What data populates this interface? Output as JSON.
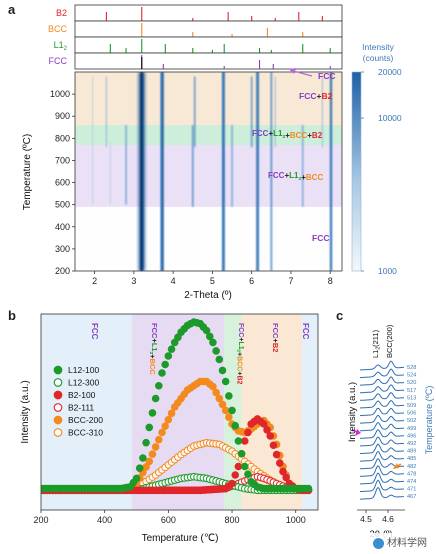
{
  "watermark": "材料学网",
  "panel_a": {
    "letter": "a",
    "xlabel": "2-Theta (º)",
    "ylabel": "Temperature (ºC)",
    "x_ticks": [
      "2",
      "3",
      "4",
      "5",
      "6",
      "7",
      "8"
    ],
    "y_ticks": [
      "200",
      "300",
      "400",
      "500",
      "600",
      "700",
      "800",
      "900",
      "1000"
    ],
    "colorbar": {
      "title_line1": "Intensity",
      "title_line2": "(counts)",
      "ticks": [
        "20000",
        "10000",
        "1000"
      ],
      "scale": "log",
      "range": [
        1000,
        20000
      ]
    },
    "ref_patterns": [
      {
        "label": "B2",
        "color": "#e0262a",
        "peaks": [
          2.3,
          3.2,
          4.5,
          5.4,
          6.0,
          6.6,
          7.2,
          7.8
        ]
      },
      {
        "label": "BCC",
        "color": "#f28a1e",
        "peaks": [
          3.2,
          4.5,
          5.5,
          6.4,
          7.3
        ]
      },
      {
        "label": "L1",
        "label_sub": "2",
        "color": "#1c9a2a",
        "peaks": [
          2.4,
          2.8,
          3.2,
          3.8,
          4.5,
          5.0,
          5.3,
          6.2,
          6.5,
          7.3,
          8.0
        ]
      },
      {
        "label": "FCC",
        "color": "#8a3cc4",
        "peaks": [
          3.2,
          3.75,
          5.3,
          6.2,
          6.55,
          8.0
        ]
      }
    ],
    "region_labels": [
      {
        "text": "FCC",
        "color": "#8a3cc4"
      },
      {
        "parts": [
          {
            "t": "FCC",
            "c": "#8a3cc4"
          },
          {
            "t": "+",
            "c": "#222"
          },
          {
            "t": "B2",
            "c": "#e0262a"
          }
        ]
      },
      {
        "parts": [
          {
            "t": "FCC",
            "c": "#8a3cc4"
          },
          {
            "t": "+",
            "c": "#222"
          },
          {
            "t": "L1",
            "c": "#1c9a2a",
            "sub": "2"
          },
          {
            "t": "+",
            "c": "#222"
          },
          {
            "t": "BCC",
            "c": "#f28a1e"
          },
          {
            "t": "+",
            "c": "#222"
          },
          {
            "t": "B2",
            "c": "#e0262a"
          }
        ]
      },
      {
        "parts": [
          {
            "t": "FCC",
            "c": "#8a3cc4"
          },
          {
            "t": "+",
            "c": "#222"
          },
          {
            "t": "L1",
            "c": "#1c9a2a",
            "sub": "2"
          },
          {
            "t": "+",
            "c": "#222"
          },
          {
            "t": "BCC",
            "c": "#f28a1e"
          }
        ]
      },
      {
        "text": "FCC",
        "color": "#8a3cc4"
      }
    ]
  },
  "panel_b": {
    "letter": "b",
    "xlabel": "Temperature (℃)",
    "ylabel": "Intensity (a.u.)",
    "x_ticks": [
      "200",
      "400",
      "600",
      "800",
      "1000"
    ],
    "region_labels": [
      {
        "parts": [
          {
            "t": "FCC",
            "c": "#8a3cc4"
          }
        ]
      },
      {
        "parts": [
          {
            "t": "FCC",
            "c": "#8a3cc4"
          },
          {
            "t": "+",
            "c": "#222"
          },
          {
            "t": "L1",
            "c": "#1c9a2a",
            "sub": "2"
          },
          {
            "t": "+",
            "c": "#222"
          },
          {
            "t": "BCC",
            "c": "#f28a1e"
          }
        ]
      },
      {
        "parts": [
          {
            "t": "FCC",
            "c": "#8a3cc4"
          },
          {
            "t": "+",
            "c": "#222"
          },
          {
            "t": "L1",
            "c": "#1c9a2a",
            "sub": "2"
          },
          {
            "t": "+",
            "c": "#222"
          },
          {
            "t": "BCC",
            "c": "#f28a1e"
          },
          {
            "t": "+",
            "c": "#222"
          },
          {
            "t": "B2",
            "c": "#e0262a"
          }
        ]
      },
      {
        "parts": [
          {
            "t": "FCC",
            "c": "#8a3cc4"
          },
          {
            "t": "+",
            "c": "#222"
          },
          {
            "t": "B2",
            "c": "#e0262a"
          }
        ]
      },
      {
        "parts": [
          {
            "t": "FCC",
            "c": "#8a3cc4"
          }
        ]
      }
    ]
  },
  "panel_c": {
    "letter": "c",
    "ylabel": "Intensity (a.u.)",
    "xlabel": "2θ (º)",
    "x_ticks": [
      "4.5",
      "4.6"
    ],
    "peak_labels": [
      "L1",
      "(211)",
      "BCC(200)"
    ],
    "right_label": "Temperature (ºC)",
    "temps": [
      "528",
      "524",
      "520",
      "517",
      "513",
      "509",
      "506",
      "502",
      "499",
      "496",
      "492",
      "489",
      "485",
      "482",
      "478",
      "474",
      "471",
      "467"
    ]
  },
  "chart_data": [
    {
      "type": "heatmap",
      "title": "",
      "xlabel": "2-Theta (º)",
      "ylabel": "Temperature (ºC)",
      "xlim": [
        1.5,
        8.3
      ],
      "ylim": [
        200,
        1100
      ],
      "colorbar": {
        "label": "Intensity (counts)",
        "scale": "log",
        "range": [
          1000,
          20000
        ]
      },
      "phase_regions": [
        {
          "label": "FCC",
          "t_range": [
            200,
            490
          ]
        },
        {
          "label": "FCC+L12+BCC",
          "t_range": [
            490,
            770
          ]
        },
        {
          "label": "FCC+L12+BCC+B2",
          "t_range": [
            770,
            860
          ]
        },
        {
          "label": "FCC+B2",
          "t_range": [
            860,
            1100
          ]
        }
      ]
    },
    {
      "type": "scatter",
      "title": "",
      "xlabel": "Temperature (℃)",
      "ylabel": "Intensity (a.u.)",
      "xlim": [
        200,
        1070
      ],
      "ylim": [
        0,
        1.05
      ],
      "regions": [
        {
          "label": "FCC",
          "x_range": [
            200,
            485
          ]
        },
        {
          "label": "FCC+L12+BCC",
          "x_range": [
            485,
            775
          ]
        },
        {
          "label": "FCC+L12+BCC+B2",
          "x_range": [
            775,
            830
          ]
        },
        {
          "label": "FCC+B2",
          "x_range": [
            830,
            1020
          ]
        },
        {
          "label": "FCC",
          "x_range": [
            1020,
            1070
          ]
        }
      ],
      "series": [
        {
          "name": "L12-100",
          "color": "#1c9a2a",
          "filled": true,
          "x": [
            200,
            250,
            300,
            350,
            400,
            450,
            480,
            500,
            520,
            540,
            560,
            580,
            600,
            620,
            640,
            660,
            680,
            700,
            720,
            740,
            760,
            780,
            800,
            820,
            840,
            860,
            880,
            900,
            920,
            940,
            960,
            980,
            1000,
            1040
          ],
          "y": [
            0.02,
            0.02,
            0.02,
            0.02,
            0.02,
            0.02,
            0.03,
            0.08,
            0.2,
            0.38,
            0.55,
            0.7,
            0.8,
            0.88,
            0.94,
            0.98,
            1.0,
            0.99,
            0.95,
            0.88,
            0.78,
            0.65,
            0.48,
            0.3,
            0.15,
            0.06,
            0.03,
            0.02,
            0.02,
            0.02,
            0.02,
            0.02,
            0.02,
            0.02
          ]
        },
        {
          "name": "L12-300",
          "color": "#1c9a2a",
          "filled": false,
          "x": [
            200,
            300,
            400,
            480,
            520,
            560,
            600,
            640,
            680,
            720,
            760,
            800,
            840,
            880,
            920,
            960,
            1000,
            1040
          ],
          "y": [
            0.01,
            0.01,
            0.01,
            0.01,
            0.02,
            0.04,
            0.06,
            0.08,
            0.09,
            0.08,
            0.06,
            0.04,
            0.02,
            0.01,
            0.01,
            0.01,
            0.01,
            0.01
          ]
        },
        {
          "name": "B2-100",
          "color": "#e0262a",
          "filled": true,
          "x": [
            200,
            400,
            700,
            780,
            800,
            820,
            840,
            860,
            880,
            900,
            920,
            940,
            960,
            980,
            1000,
            1020,
            1040
          ],
          "y": [
            0.01,
            0.01,
            0.01,
            0.02,
            0.05,
            0.15,
            0.3,
            0.4,
            0.43,
            0.4,
            0.33,
            0.22,
            0.12,
            0.05,
            0.02,
            0.01,
            0.01
          ]
        },
        {
          "name": "B2-111",
          "color": "#e0262a",
          "filled": false,
          "x": [
            200,
            400,
            700,
            780,
            820,
            860,
            880,
            900,
            940,
            980,
            1020,
            1040
          ],
          "y": [
            0.01,
            0.01,
            0.01,
            0.02,
            0.05,
            0.08,
            0.09,
            0.08,
            0.05,
            0.02,
            0.01,
            0.01
          ]
        },
        {
          "name": "BCC-200",
          "color": "#f28a1e",
          "filled": true,
          "x": [
            200,
            300,
            400,
            480,
            500,
            540,
            580,
            620,
            660,
            700,
            720,
            740,
            760,
            780,
            800,
            820,
            840,
            860,
            880,
            900,
            920,
            940,
            960,
            980,
            1000,
            1020,
            1040
          ],
          "y": [
            0.01,
            0.01,
            0.01,
            0.02,
            0.05,
            0.18,
            0.35,
            0.5,
            0.6,
            0.65,
            0.65,
            0.62,
            0.55,
            0.48,
            0.4,
            0.36,
            0.35,
            0.37,
            0.4,
            0.42,
            0.38,
            0.28,
            0.15,
            0.05,
            0.02,
            0.01,
            0.01
          ]
        },
        {
          "name": "BCC-310",
          "color": "#f28a1e",
          "filled": false,
          "x": [
            200,
            300,
            400,
            480,
            520,
            560,
            600,
            640,
            680,
            720,
            760,
            800,
            840,
            880,
            920,
            960,
            1000,
            1040
          ],
          "y": [
            0.01,
            0.01,
            0.01,
            0.02,
            0.05,
            0.1,
            0.16,
            0.22,
            0.27,
            0.29,
            0.28,
            0.24,
            0.18,
            0.12,
            0.07,
            0.03,
            0.01,
            0.01
          ]
        }
      ]
    }
  ]
}
